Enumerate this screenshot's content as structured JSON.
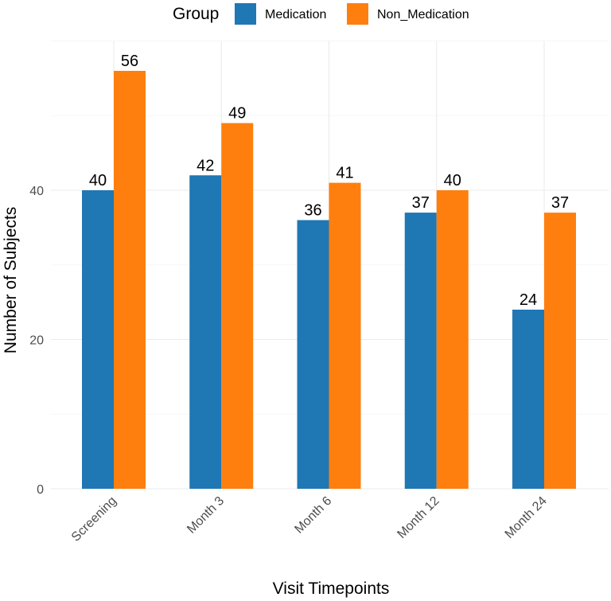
{
  "chart_data": {
    "type": "bar",
    "title": "",
    "xlabel": "Visit Timepoints",
    "ylabel": "Number of Subjects",
    "categories": [
      "Screening",
      "Month 3",
      "Month 6",
      "Month 12",
      "Month 24"
    ],
    "series": [
      {
        "name": "Medication",
        "color": "#1f77b4",
        "values": [
          40,
          42,
          36,
          37,
          24
        ]
      },
      {
        "name": "Non_Medication",
        "color": "#ff7f0e",
        "values": [
          56,
          49,
          41,
          40,
          37
        ]
      }
    ],
    "ylim": [
      0,
      60
    ],
    "yticks": [
      0,
      20,
      40
    ],
    "grid": true,
    "legend": {
      "title": "Group",
      "position": "top"
    }
  }
}
